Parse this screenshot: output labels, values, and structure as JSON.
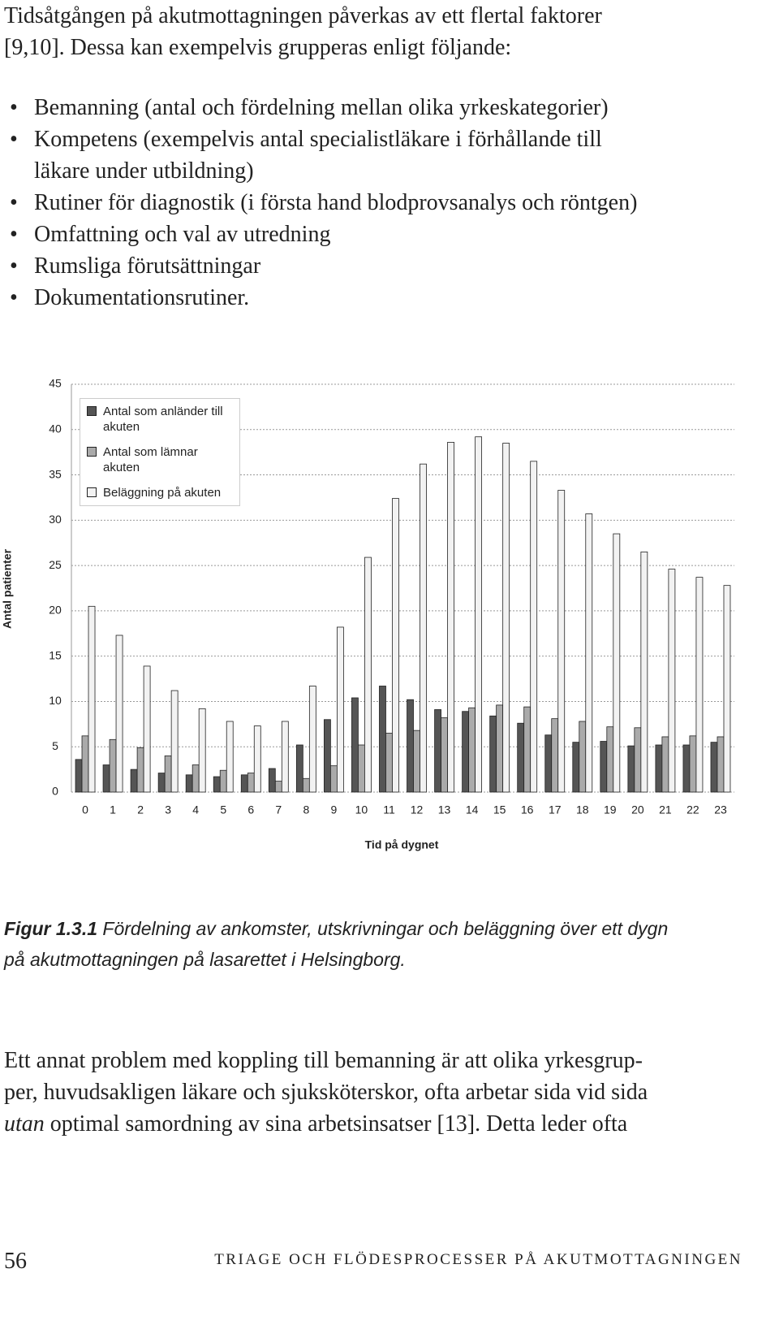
{
  "intro": {
    "lines": [
      "Tidsåtgången på akutmottagningen påverkas av ett flertal faktorer",
      "[9,10]. Dessa kan exempelvis grupperas enligt följande:"
    ]
  },
  "bullets": [
    {
      "lines": [
        "Bemanning (antal och fördelning mellan olika yrkeskategorier)"
      ]
    },
    {
      "lines": [
        "Kompetens (exempelvis antal specialistläkare i förhållande till",
        "läkare under utbildning)"
      ]
    },
    {
      "lines": [
        "Rutiner för diagnostik (i första hand blodprovsanalys och röntgen)"
      ]
    },
    {
      "lines": [
        "Omfattning och val av utredning"
      ]
    },
    {
      "lines": [
        "Rumsliga förutsättningar"
      ]
    },
    {
      "lines": [
        "Dokumentationsrutiner."
      ]
    }
  ],
  "chart_data": {
    "type": "bar",
    "x_label": "Tid på dygnet",
    "y_label": "Antal patienter",
    "categories": [
      "0",
      "1",
      "2",
      "3",
      "4",
      "5",
      "6",
      "7",
      "8",
      "9",
      "10",
      "11",
      "12",
      "13",
      "14",
      "15",
      "16",
      "17",
      "18",
      "19",
      "20",
      "21",
      "22",
      "23"
    ],
    "series": [
      {
        "name": "Antal som anländer till akuten",
        "color": "#555555",
        "values": [
          3.6,
          3.0,
          2.5,
          2.1,
          1.9,
          1.7,
          1.9,
          2.6,
          5.2,
          8.0,
          10.4,
          11.7,
          10.2,
          9.1,
          8.9,
          8.4,
          7.6,
          6.3,
          5.5,
          5.6,
          5.1,
          5.2,
          5.2,
          5.5
        ]
      },
      {
        "name": "Antal som lämnar akuten",
        "color": "#aaaaaa",
        "values": [
          6.2,
          5.8,
          4.9,
          4.0,
          3.0,
          2.4,
          2.1,
          1.2,
          1.5,
          2.9,
          5.2,
          6.5,
          6.8,
          8.2,
          9.3,
          9.6,
          9.4,
          8.1,
          7.8,
          7.2,
          7.1,
          6.1,
          6.2,
          6.1
        ]
      },
      {
        "name": "Beläggning på akuten",
        "color": "#f2f2f2",
        "values": [
          20.5,
          17.3,
          13.9,
          11.2,
          9.2,
          7.8,
          7.3,
          7.8,
          11.7,
          18.2,
          25.9,
          32.4,
          36.2,
          38.6,
          39.2,
          38.5,
          36.5,
          33.3,
          30.7,
          28.5,
          26.5,
          24.6,
          23.7,
          22.8
        ]
      }
    ],
    "ylim": [
      0,
      45
    ],
    "yticks": [
      0,
      5,
      10,
      15,
      20,
      25,
      30,
      35,
      40,
      45
    ],
    "grid": true,
    "legend": "upper left"
  },
  "caption": {
    "label": "Figur 1.3.1",
    "lines": [
      " Fördelning av ankomster, utskrivningar och beläggning över ett dygn",
      "på akutmottagningen på lasarettet i Helsingborg."
    ]
  },
  "paragraph": {
    "lines": [
      "Ett annat problem med koppling till bemanning är att olika yrkesgrup-",
      "per, huvudsakligen läkare och sjuksköterskor, ofta arbetar sida vid sida"
    ],
    "em": "utan",
    "after": " optimal samordning av sina arbetsinsatser [13]. Detta leder ofta"
  },
  "footer": {
    "page": "56",
    "running_title": "TRIAGE OCH FLÖDESPROCESSER PÅ AKUTMOTTAGNINGEN"
  }
}
